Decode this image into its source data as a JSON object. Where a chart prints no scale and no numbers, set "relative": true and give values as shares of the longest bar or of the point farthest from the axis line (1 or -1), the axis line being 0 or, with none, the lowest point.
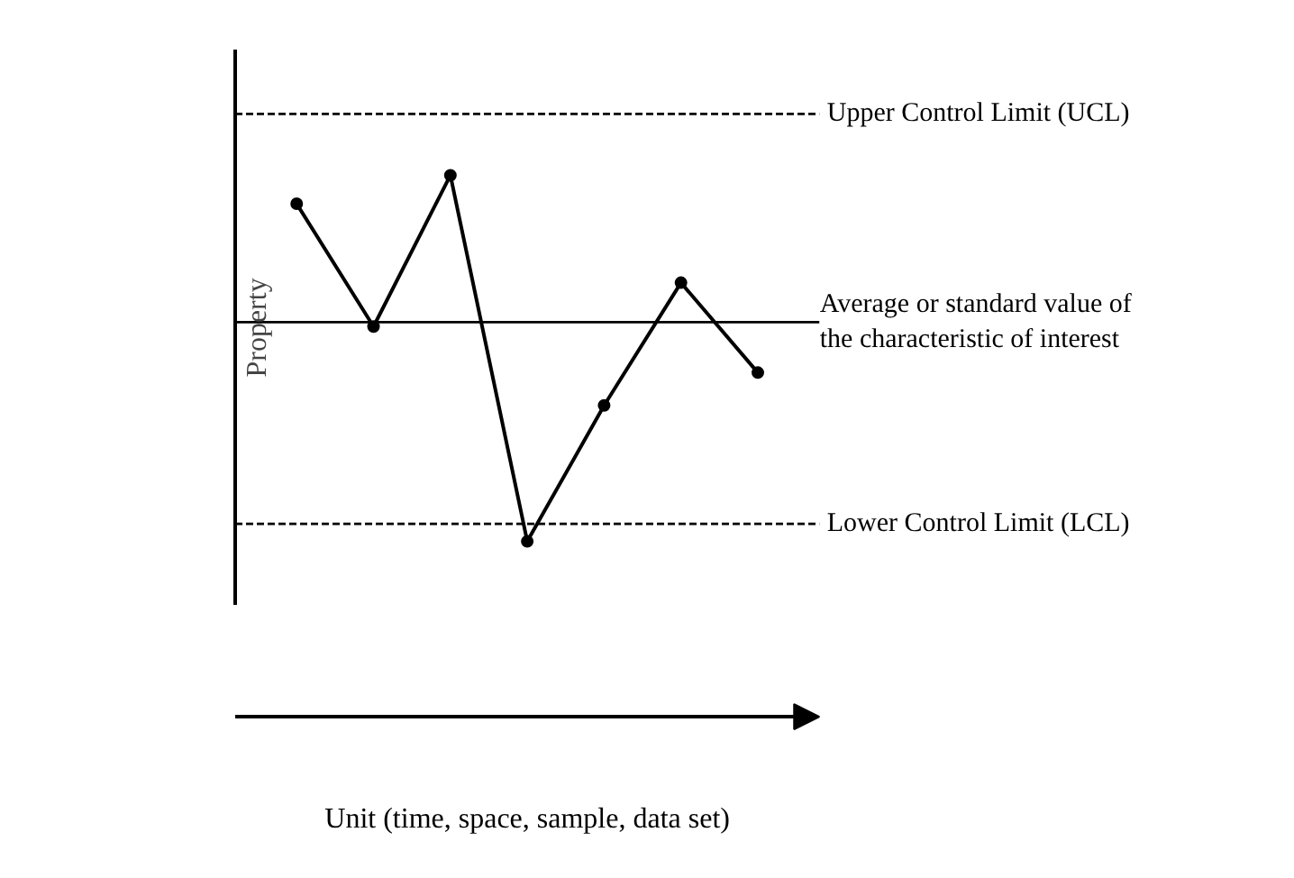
{
  "chart_data": {
    "type": "line",
    "relative": true,
    "ylabel": "Property",
    "annotations": [
      "Unit (time, space, sample, data set)"
    ],
    "categories": [
      null,
      null,
      null,
      null,
      null,
      null,
      null
    ],
    "series": [
      {
        "color": "#000000",
        "values": [
          0.54,
          -0.02,
          0.67,
          -1,
          -0.38,
          0.18,
          -0.23
        ]
      }
    ],
    "marker": "circle",
    "line_style": "solid",
    "ref_lines": [
      {
        "axis": "y",
        "value": 0.95,
        "label": "Upper Control Limit (UCL)",
        "line_style": "dashed",
        "color": "#000000"
      },
      {
        "axis": "y",
        "value": 0,
        "label": "Average or standard value of\nthe characteristic of interest",
        "line_style": "solid",
        "color": "#000000"
      },
      {
        "axis": "y",
        "value": -0.92,
        "label": "Lower Control Limit (LCL)",
        "line_style": "dashed",
        "color": "#000000"
      }
    ]
  }
}
